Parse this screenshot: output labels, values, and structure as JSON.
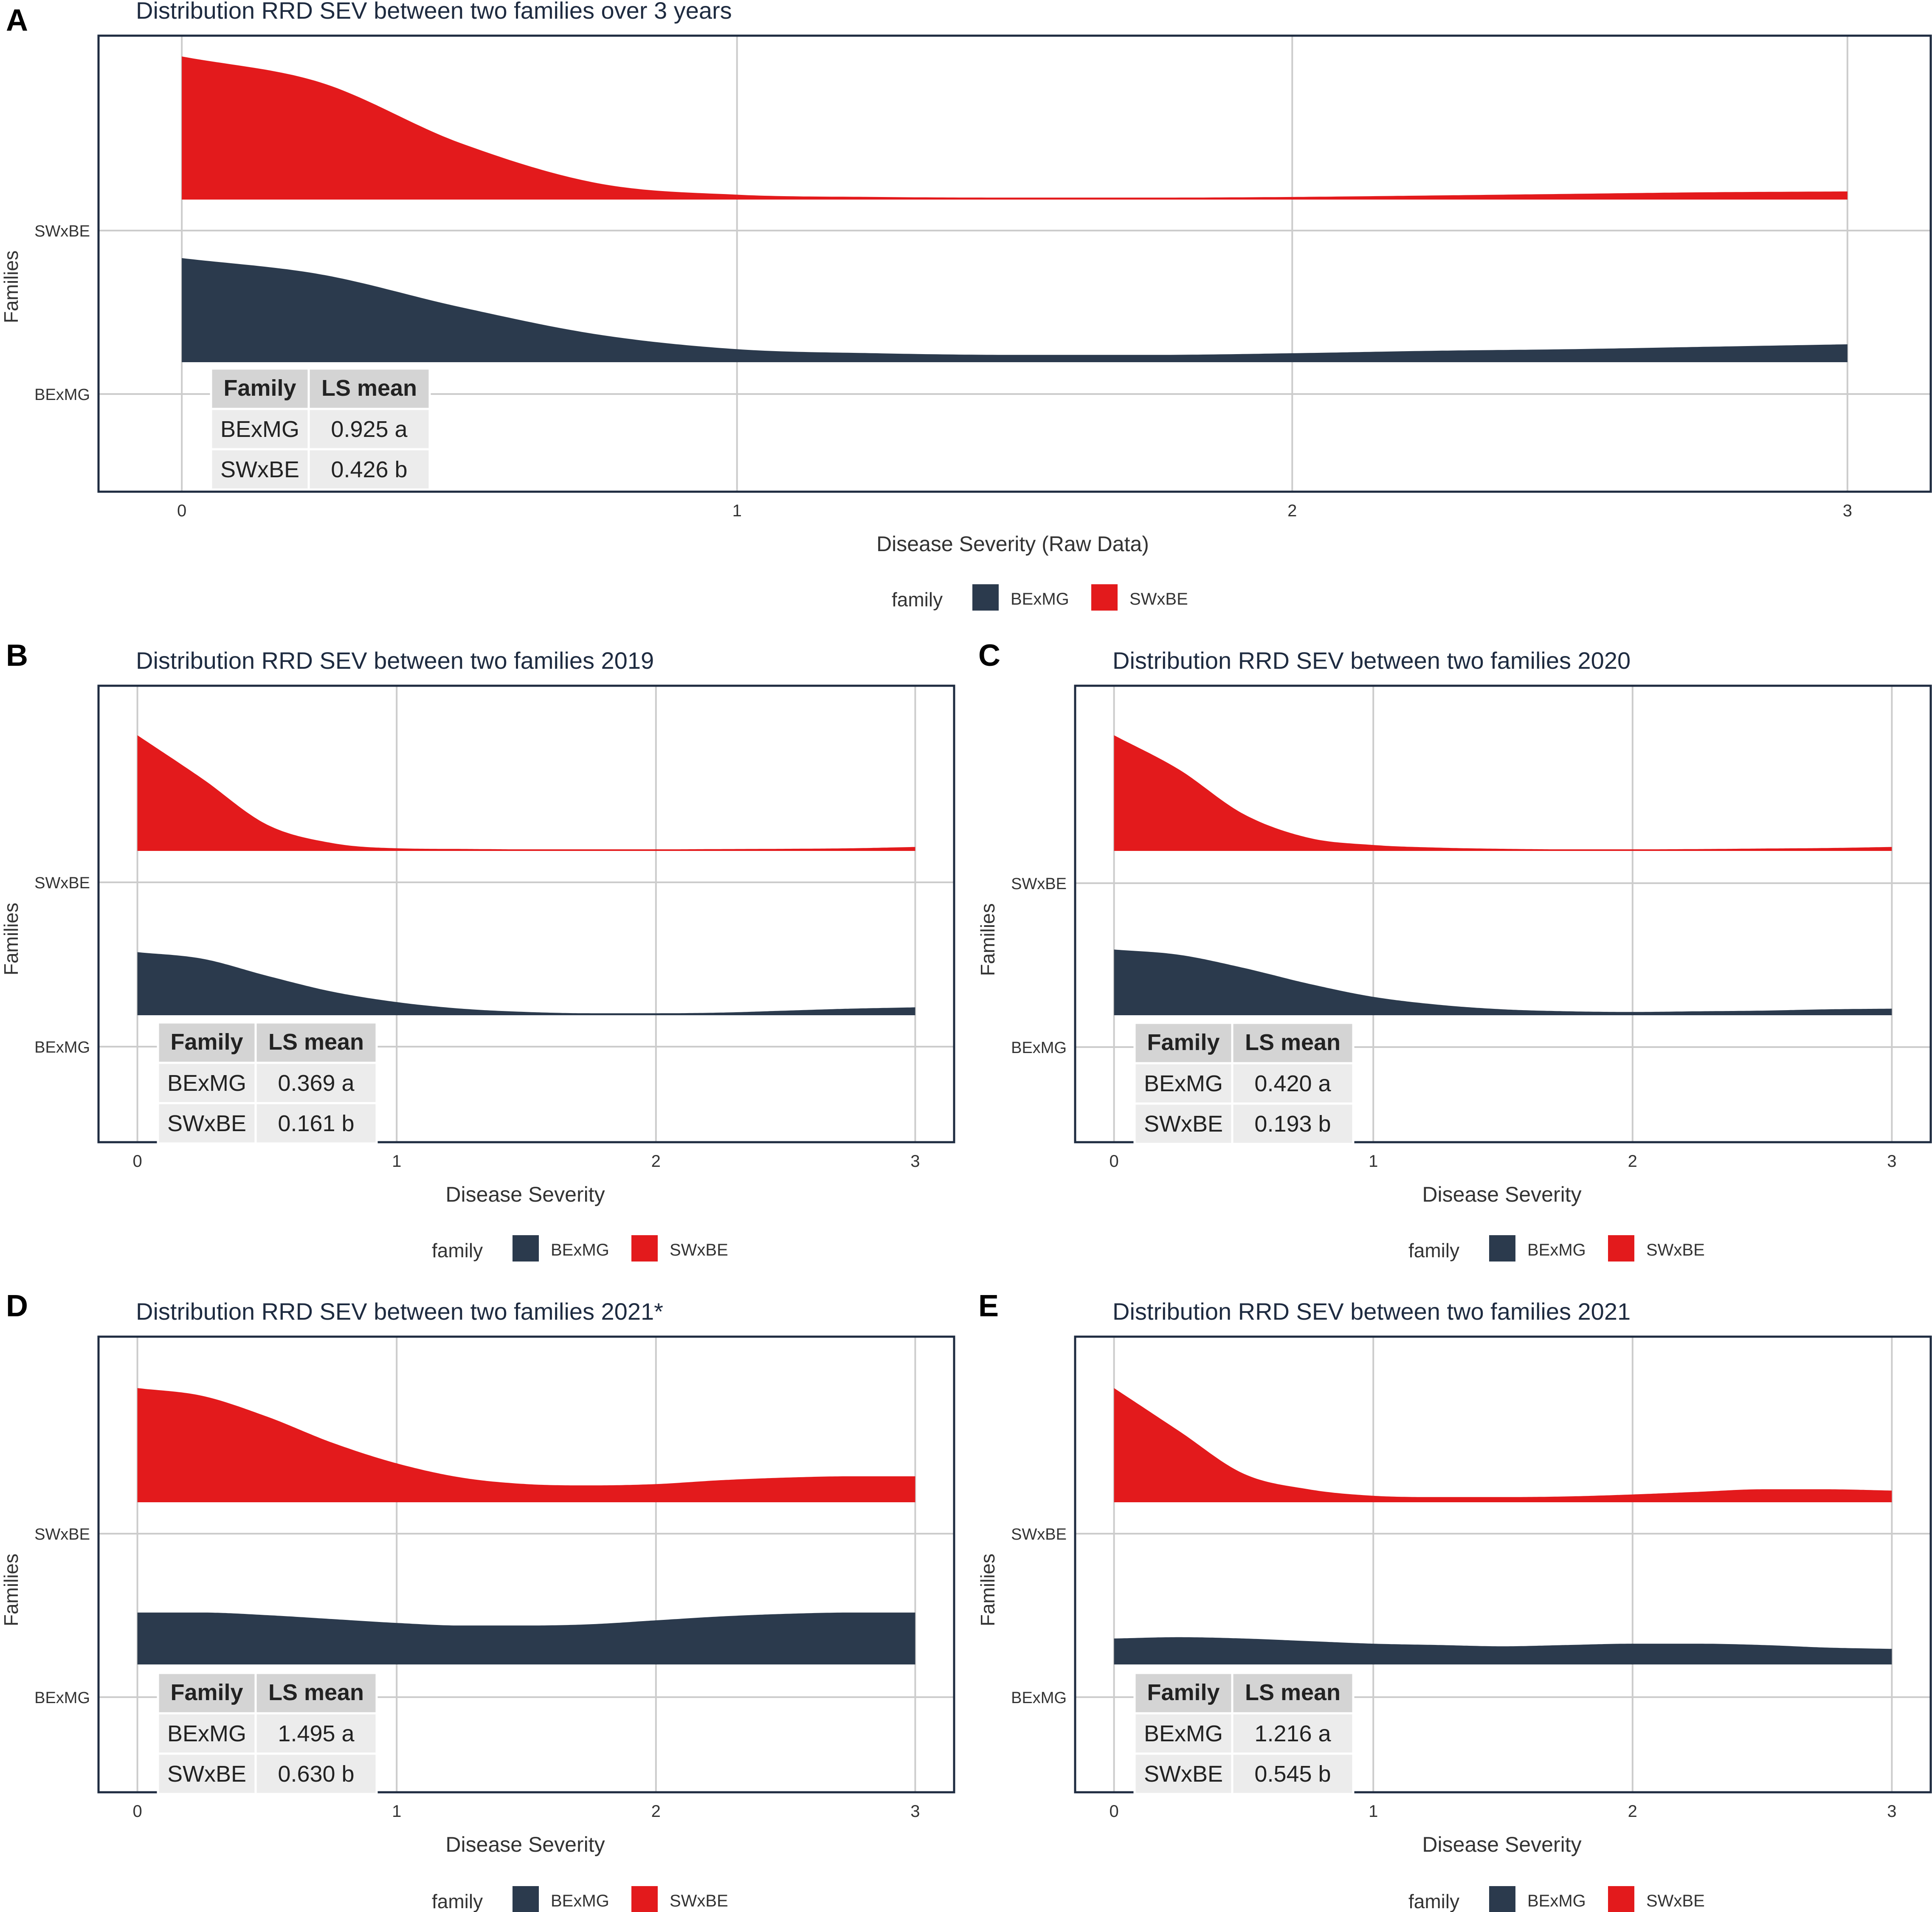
{
  "colors": {
    "BExMG": "#2b3a4d",
    "SWxBE": "#e31a1c",
    "grid": "#cccccc",
    "frame": "#1e2b40",
    "title_text": "#1e2b40",
    "axis_text": "#333333",
    "table_header_bg": "#d4d4d4",
    "table_body_bg": "#ececec"
  },
  "figure": {
    "panels": [
      {
        "letter": "A",
        "title": "Distribution RRD SEV between two families over 3 years",
        "xlabel": "Disease Severity (Raw Data)",
        "ylabel": "Families"
      },
      {
        "letter": "B",
        "title": "Distribution RRD SEV between two families 2019",
        "xlabel": "Disease Severity",
        "ylabel": "Families"
      },
      {
        "letter": "C",
        "title": "Distribution RRD SEV between two families 2020",
        "xlabel": "Disease Severity",
        "ylabel": "Families"
      },
      {
        "letter": "D",
        "title": "Distribution RRD SEV between two families 2021*",
        "xlabel": "Disease Severity",
        "ylabel": "Families"
      },
      {
        "letter": "E",
        "title": "Distribution RRD SEV between two families 2021",
        "xlabel": "Disease Severity",
        "ylabel": "Families"
      }
    ]
  },
  "chart_data": [
    {
      "panel": "A",
      "type": "area",
      "title": "Distribution RRD SEV between two families over 3 years",
      "xlabel": "Disease Severity (Raw Data)",
      "ylabel": "Families",
      "xlim": [
        -0.15,
        3.15
      ],
      "xticks": [
        0,
        1,
        2,
        3
      ],
      "xtick_labels": [
        "0",
        "1",
        "2",
        "3"
      ],
      "categories": [
        "BExMG",
        "SWxBE"
      ],
      "ytick_labels": [
        "BExMG",
        "SWxBE"
      ],
      "legend": {
        "title": "family",
        "entries": [
          "BExMG",
          "SWxBE"
        ],
        "position": "bottom"
      },
      "series": [
        {
          "name": "BExMG",
          "x": [
            0,
            0.25,
            0.5,
            0.75,
            1,
            1.25,
            1.5,
            1.75,
            2,
            2.25,
            2.5,
            2.75,
            3
          ],
          "density": [
            0.64,
            0.54,
            0.34,
            0.17,
            0.08,
            0.055,
            0.045,
            0.045,
            0.055,
            0.07,
            0.08,
            0.095,
            0.11
          ]
        },
        {
          "name": "SWxBE",
          "x": [
            0,
            0.25,
            0.5,
            0.75,
            1,
            1.25,
            1.5,
            1.75,
            2,
            2.25,
            2.5,
            2.75,
            3
          ],
          "density": [
            0.88,
            0.72,
            0.35,
            0.1,
            0.03,
            0.016,
            0.012,
            0.012,
            0.016,
            0.025,
            0.035,
            0.045,
            0.05
          ]
        }
      ],
      "table": {
        "headers": [
          "Family",
          "LS mean"
        ],
        "rows": [
          [
            "BExMG",
            "0.925 a"
          ],
          [
            "SWxBE",
            "0.426 b"
          ]
        ]
      }
    },
    {
      "panel": "B",
      "type": "area",
      "title": "Distribution RRD SEV between two families 2019",
      "xlabel": "Disease Severity",
      "ylabel": "Families",
      "xlim": [
        -0.15,
        3.15
      ],
      "xticks": [
        0,
        1,
        2,
        3
      ],
      "xtick_labels": [
        "0",
        "1",
        "2",
        "3"
      ],
      "categories": [
        "BExMG",
        "SWxBE"
      ],
      "ytick_labels": [
        "BExMG",
        "SWxBE"
      ],
      "legend": {
        "title": "family",
        "entries": [
          "BExMG",
          "SWxBE"
        ],
        "position": "bottom"
      },
      "series": [
        {
          "name": "BExMG",
          "x": [
            0,
            0.25,
            0.5,
            0.75,
            1,
            1.25,
            1.5,
            1.75,
            2,
            2.25,
            2.5,
            2.75,
            3
          ],
          "density": [
            0.48,
            0.43,
            0.3,
            0.18,
            0.1,
            0.05,
            0.025,
            0.015,
            0.015,
            0.02,
            0.035,
            0.05,
            0.06
          ]
        },
        {
          "name": "SWxBE",
          "x": [
            0,
            0.25,
            0.5,
            0.75,
            1,
            1.25,
            1.5,
            1.75,
            2,
            2.25,
            2.5,
            2.75,
            3
          ],
          "density": [
            0.88,
            0.55,
            0.2,
            0.06,
            0.02,
            0.015,
            0.012,
            0.012,
            0.012,
            0.014,
            0.016,
            0.02,
            0.03
          ]
        }
      ],
      "table": {
        "headers": [
          "Family",
          "LS mean"
        ],
        "rows": [
          [
            "BExMG",
            "0.369 a"
          ],
          [
            "SWxBE",
            "0.161 b"
          ]
        ]
      }
    },
    {
      "panel": "C",
      "type": "area",
      "title": "Distribution RRD SEV between two families 2020",
      "xlabel": "Disease Severity",
      "ylabel": "Families",
      "xlim": [
        -0.15,
        3.15
      ],
      "xticks": [
        0,
        1,
        2,
        3
      ],
      "xtick_labels": [
        "0",
        "1",
        "2",
        "3"
      ],
      "categories": [
        "BExMG",
        "SWxBE"
      ],
      "ytick_labels": [
        "BExMG",
        "SWxBE"
      ],
      "legend": {
        "title": "family",
        "entries": [
          "BExMG",
          "SWxBE"
        ],
        "position": "bottom"
      },
      "series": [
        {
          "name": "BExMG",
          "x": [
            0,
            0.25,
            0.5,
            0.75,
            1,
            1.25,
            1.5,
            1.75,
            2,
            2.25,
            2.5,
            2.75,
            3
          ],
          "density": [
            0.5,
            0.46,
            0.36,
            0.24,
            0.14,
            0.08,
            0.045,
            0.03,
            0.025,
            0.03,
            0.035,
            0.045,
            0.05
          ]
        },
        {
          "name": "SWxBE",
          "x": [
            0,
            0.25,
            0.5,
            0.75,
            1,
            1.25,
            1.5,
            1.75,
            2,
            2.25,
            2.5,
            2.75,
            3
          ],
          "density": [
            0.88,
            0.62,
            0.28,
            0.1,
            0.045,
            0.025,
            0.016,
            0.012,
            0.012,
            0.014,
            0.018,
            0.022,
            0.03
          ]
        }
      ],
      "table": {
        "headers": [
          "Family",
          "LS mean"
        ],
        "rows": [
          [
            "BExMG",
            "0.420 a"
          ],
          [
            "SWxBE",
            "0.193 b"
          ]
        ]
      }
    },
    {
      "panel": "D",
      "type": "area",
      "title": "Distribution RRD SEV between two families 2021*",
      "xlabel": "Disease Severity",
      "ylabel": "Families",
      "xlim": [
        -0.15,
        3.15
      ],
      "xticks": [
        0,
        1,
        2,
        3
      ],
      "xtick_labels": [
        "0",
        "1",
        "2",
        "3"
      ],
      "categories": [
        "BExMG",
        "SWxBE"
      ],
      "ytick_labels": [
        "BExMG",
        "SWxBE"
      ],
      "legend": {
        "title": "family",
        "entries": [
          "BExMG",
          "SWxBE"
        ],
        "position": "bottom"
      },
      "series": [
        {
          "name": "BExMG",
          "x": [
            0,
            0.25,
            0.5,
            0.75,
            1,
            1.25,
            1.5,
            1.75,
            2,
            2.25,
            2.5,
            2.75,
            3
          ],
          "density": [
            0.4,
            0.4,
            0.38,
            0.35,
            0.32,
            0.3,
            0.3,
            0.31,
            0.34,
            0.37,
            0.39,
            0.4,
            0.4
          ]
        },
        {
          "name": "SWxBE",
          "x": [
            0,
            0.25,
            0.5,
            0.75,
            1,
            1.25,
            1.5,
            1.75,
            2,
            2.25,
            2.5,
            2.75,
            3
          ],
          "density": [
            0.88,
            0.82,
            0.66,
            0.46,
            0.3,
            0.19,
            0.14,
            0.13,
            0.14,
            0.17,
            0.19,
            0.2,
            0.2
          ]
        }
      ],
      "table": {
        "headers": [
          "Family",
          "LS mean"
        ],
        "rows": [
          [
            "BExMG",
            "1.495 a"
          ],
          [
            "SWxBE",
            "0.630 b"
          ]
        ]
      }
    },
    {
      "panel": "E",
      "type": "area",
      "title": "Distribution RRD SEV between two families 2021",
      "xlabel": "Disease Severity",
      "ylabel": "Families",
      "xlim": [
        -0.15,
        3.15
      ],
      "xticks": [
        0,
        1,
        2,
        3
      ],
      "xtick_labels": [
        "0",
        "1",
        "2",
        "3"
      ],
      "categories": [
        "BExMG",
        "SWxBE"
      ],
      "ytick_labels": [
        "BExMG",
        "SWxBE"
      ],
      "legend": {
        "title": "family",
        "entries": [
          "BExMG",
          "SWxBE"
        ],
        "position": "bottom"
      },
      "series": [
        {
          "name": "BExMG",
          "x": [
            0,
            0.25,
            0.5,
            0.75,
            1,
            1.25,
            1.5,
            1.75,
            2,
            2.25,
            2.5,
            2.75,
            3
          ],
          "density": [
            0.2,
            0.21,
            0.2,
            0.18,
            0.16,
            0.15,
            0.14,
            0.15,
            0.16,
            0.16,
            0.15,
            0.13,
            0.12
          ]
        },
        {
          "name": "SWxBE",
          "x": [
            0,
            0.25,
            0.5,
            0.75,
            1,
            1.25,
            1.5,
            1.75,
            2,
            2.25,
            2.5,
            2.75,
            3
          ],
          "density": [
            0.88,
            0.55,
            0.22,
            0.1,
            0.05,
            0.04,
            0.04,
            0.045,
            0.06,
            0.08,
            0.1,
            0.1,
            0.09
          ]
        }
      ],
      "table": {
        "headers": [
          "Family",
          "LS mean"
        ],
        "rows": [
          [
            "BExMG",
            "1.216 a"
          ],
          [
            "SWxBE",
            "0.545 b"
          ]
        ]
      }
    }
  ]
}
